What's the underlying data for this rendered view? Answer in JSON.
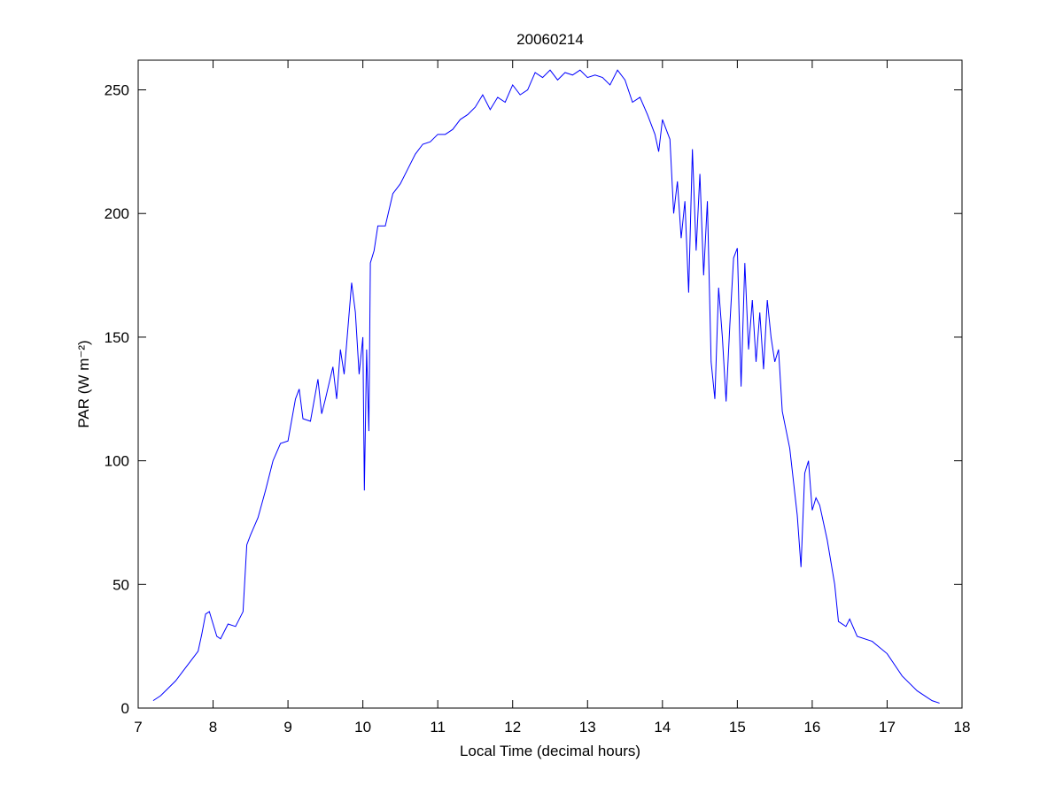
{
  "chart_data": {
    "type": "line",
    "title": "20060214",
    "xlabel": "Local Time (decimal hours)",
    "ylabel": "PAR (W m⁻²)",
    "xlim": [
      7,
      18
    ],
    "xticks": [
      7,
      8,
      9,
      10,
      11,
      12,
      13,
      14,
      15,
      16,
      17,
      18
    ],
    "ylim": [
      0,
      262
    ],
    "yticks": [
      0,
      50,
      100,
      150,
      200,
      250
    ],
    "grid": false,
    "series": [
      {
        "color": "#0000ff",
        "x": [
          7.2,
          7.3,
          7.4,
          7.5,
          7.6,
          7.7,
          7.8,
          7.85,
          7.9,
          7.95,
          8.0,
          8.05,
          8.1,
          8.2,
          8.3,
          8.4,
          8.45,
          8.5,
          8.6,
          8.7,
          8.8,
          8.9,
          9.0,
          9.1,
          9.15,
          9.2,
          9.3,
          9.4,
          9.45,
          9.5,
          9.6,
          9.65,
          9.7,
          9.75,
          9.85,
          9.9,
          9.95,
          10.0,
          10.02,
          10.05,
          10.08,
          10.1,
          10.15,
          10.2,
          10.3,
          10.4,
          10.5,
          10.6,
          10.7,
          10.8,
          10.9,
          11.0,
          11.1,
          11.2,
          11.3,
          11.4,
          11.5,
          11.6,
          11.7,
          11.8,
          11.9,
          12.0,
          12.1,
          12.2,
          12.3,
          12.4,
          12.5,
          12.6,
          12.7,
          12.8,
          12.9,
          13.0,
          13.1,
          13.2,
          13.3,
          13.4,
          13.5,
          13.6,
          13.7,
          13.8,
          13.9,
          13.95,
          14.0,
          14.1,
          14.15,
          14.2,
          14.25,
          14.3,
          14.35,
          14.4,
          14.45,
          14.5,
          14.55,
          14.6,
          14.65,
          14.7,
          14.75,
          14.8,
          14.85,
          14.9,
          14.95,
          15.0,
          15.05,
          15.1,
          15.15,
          15.2,
          15.25,
          15.3,
          15.35,
          15.4,
          15.45,
          15.5,
          15.55,
          15.6,
          15.7,
          15.8,
          15.85,
          15.9,
          15.95,
          16.0,
          16.05,
          16.1,
          16.2,
          16.3,
          16.35,
          16.45,
          16.5,
          16.6,
          16.8,
          17.0,
          17.2,
          17.4,
          17.6,
          17.7
        ],
        "values": [
          3,
          5,
          8,
          11,
          15,
          19,
          23,
          30,
          38,
          39,
          34,
          29,
          28,
          34,
          33,
          39,
          66,
          70,
          77,
          88,
          100,
          107,
          108,
          125,
          129,
          117,
          116,
          133,
          119,
          125,
          138,
          125,
          145,
          135,
          172,
          160,
          135,
          150,
          88,
          145,
          112,
          180,
          185,
          195,
          195,
          208,
          212,
          218,
          224,
          228,
          229,
          232,
          232,
          234,
          238,
          240,
          243,
          248,
          242,
          247,
          245,
          252,
          248,
          250,
          257,
          255,
          258,
          254,
          257,
          256,
          258,
          255,
          256,
          255,
          252,
          258,
          254,
          245,
          247,
          240,
          232,
          225,
          238,
          230,
          200,
          213,
          190,
          205,
          168,
          226,
          185,
          216,
          175,
          205,
          140,
          125,
          170,
          150,
          124,
          155,
          182,
          186,
          130,
          180,
          145,
          165,
          140,
          160,
          137,
          165,
          150,
          140,
          145,
          120,
          105,
          78,
          57,
          95,
          100,
          80,
          85,
          82,
          68,
          50,
          35,
          33,
          36,
          29,
          27,
          22,
          13,
          7,
          3,
          2
        ]
      }
    ]
  }
}
